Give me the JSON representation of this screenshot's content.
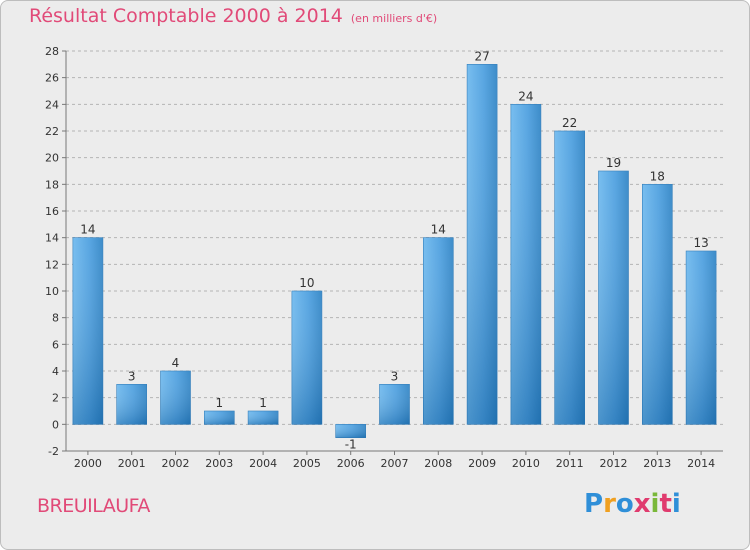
{
  "header": {
    "title": "Résultat Comptable 2000 à 2014",
    "subtitle": "(en milliers d'€)"
  },
  "footer": {
    "commune": "BREUILAUFA",
    "logo_letters": [
      "P",
      "r",
      "o",
      "x",
      "i",
      "t",
      "i"
    ],
    "logo_colors": [
      "#2f8fd8",
      "#f0a020",
      "#2f8fd8",
      "#e03b6e",
      "#7ab83a",
      "#e03b6e",
      "#2f8fd8"
    ]
  },
  "colors": {
    "accent": "#e14a78",
    "bar_light": "#5aace8",
    "bar_dark": "#2275b8",
    "plot_bg": "#ececec",
    "grid": "#b4b4b4"
  },
  "chart_data": {
    "type": "bar",
    "title": "Résultat Comptable 2000 à 2014",
    "subtitle": "(en milliers d'€)",
    "xlabel": "",
    "ylabel": "",
    "categories": [
      "2000",
      "2001",
      "2002",
      "2003",
      "2004",
      "2005",
      "2006",
      "2007",
      "2008",
      "2009",
      "2010",
      "2011",
      "2012",
      "2013",
      "2014"
    ],
    "values": [
      14,
      3,
      4,
      1,
      1,
      10,
      -1,
      3,
      14,
      27,
      24,
      22,
      19,
      18,
      13
    ],
    "value_labels": [
      "14",
      "3",
      "4",
      "1",
      "1",
      "10",
      "-1",
      "3",
      "14",
      "27",
      "24",
      "22",
      "19",
      "18",
      "13"
    ],
    "ylim": [
      -2,
      28
    ],
    "yticks": [
      -2,
      0,
      2,
      4,
      6,
      8,
      10,
      12,
      14,
      16,
      18,
      20,
      22,
      24,
      26,
      28
    ],
    "grid": true,
    "legend": "none"
  }
}
